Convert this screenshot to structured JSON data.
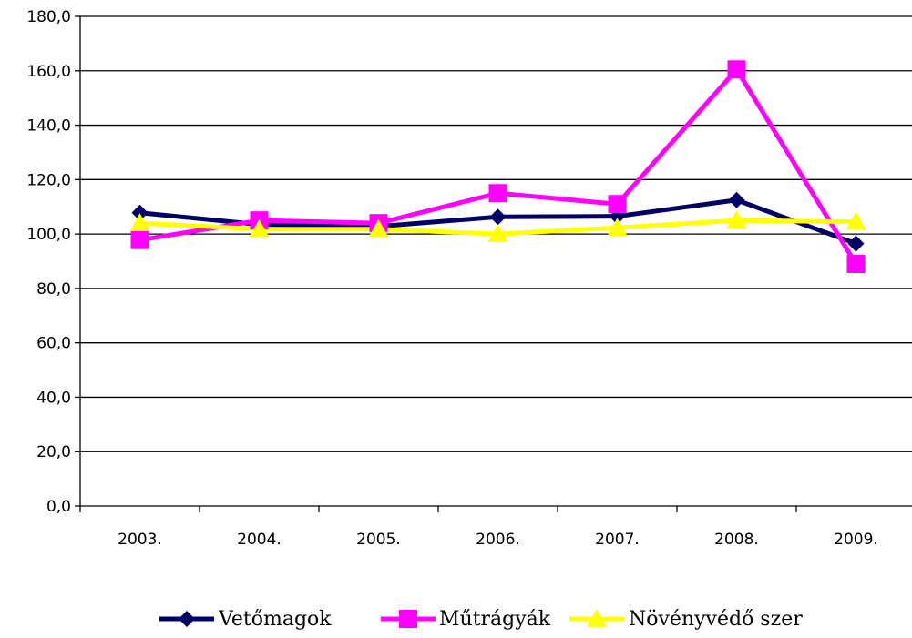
{
  "chart_data": {
    "type": "line",
    "categories": [
      "2003.",
      "2004.",
      "2005.",
      "2006.",
      "2007.",
      "2008.",
      "2009."
    ],
    "y_tick_labels": [
      "0,0",
      "20,0",
      "40,0",
      "60,0",
      "80,0",
      "100,0",
      "120,0",
      "140,0",
      "160,0",
      "180,0"
    ],
    "ylim": [
      0,
      180
    ],
    "grid": true,
    "legend_position": "bottom",
    "series": [
      {
        "name": "Vetőmagok",
        "values": [
          107.8,
          103.5,
          102.8,
          106.3,
          106.5,
          112.5,
          96.5
        ],
        "color": "#000066",
        "marker": "diamond"
      },
      {
        "name": "Műtrágyák",
        "values": [
          97.8,
          105.0,
          104.0,
          115.0,
          111.0,
          160.5,
          89.0
        ],
        "color": "#ff00ff",
        "marker": "square"
      },
      {
        "name": "Növényvédő szer",
        "values": [
          104.0,
          101.8,
          101.8,
          100.0,
          102.3,
          105.0,
          104.5
        ],
        "color": "#ffff00",
        "marker": "triangle"
      }
    ]
  }
}
